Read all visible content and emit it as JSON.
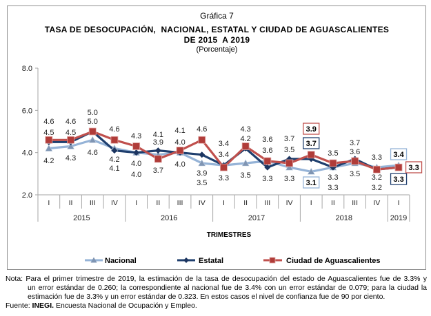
{
  "figure_label": "Gráfica 7",
  "title_line1": "TASA DE DESOCUPACIÓN,  NACIONAL, ESTATAL Y CIUDAD DE AGUASCALIENTES",
  "title_line2": "DE 2015  A 2019",
  "subtitle": "(Porcentaje)",
  "note": {
    "line1": "Nota: Para el primer trimestre de 2019, la estimación de la tasa de desocupación del estado de Aguascalientes fue de 3.3% y",
    "line2": "un error estándar de 0.260; la correspondiente al nacional fue de 3.4% con un error estándar de 0.079; para la ciudad la",
    "line3": "estimación fue de 3.3% y un error estándar de 0.323. En estos casos el nivel de confianza fue de 90 por ciento.",
    "source_prefix": "Fuente: ",
    "source_org": "INEGI.",
    "source_text": " Encuesta Nacional de Ocupación y Empleo."
  },
  "chart_data": {
    "type": "line",
    "title": "TASA DE DESOCUPACIÓN, NACIONAL, ESTATAL Y CIUDAD DE AGUASCALIENTES DE 2015 A 2019",
    "subtitle": "(Porcentaje)",
    "xlabel": "TRIMESTRES",
    "ylabel": "",
    "ylim": [
      2.0,
      8.0
    ],
    "y_ticks": [
      "2.0",
      "4.0",
      "6.0",
      "8.0"
    ],
    "grid": false,
    "legend_position": "bottom",
    "categories": [
      "2015-I",
      "2015-II",
      "2015-III",
      "2015-IV",
      "2016-I",
      "2016-II",
      "2016-III",
      "2016-IV",
      "2017-I",
      "2017-II",
      "2017-III",
      "2017-IV",
      "2018-I",
      "2018-II",
      "2018-III",
      "2018-IV",
      "2019-I"
    ],
    "quarter_labels": [
      "I",
      "II",
      "III",
      "IV",
      "I",
      "II",
      "III",
      "IV",
      "I",
      "II",
      "III",
      "IV",
      "I",
      "II",
      "III",
      "IV",
      "I"
    ],
    "year_groups": [
      {
        "label": "2015",
        "quarters": 4
      },
      {
        "label": "2016",
        "quarters": 4
      },
      {
        "label": "2017",
        "quarters": 4
      },
      {
        "label": "2018",
        "quarters": 4
      },
      {
        "label": "2019",
        "quarters": 1
      }
    ],
    "series": [
      {
        "name": "Nacional",
        "color": "#95b3d7",
        "marker": "triangle",
        "marker_color": "#7f95b3",
        "values": [
          4.2,
          4.3,
          4.6,
          4.2,
          4.0,
          3.9,
          4.0,
          3.5,
          3.4,
          3.5,
          3.6,
          3.3,
          3.1,
          3.3,
          3.5,
          3.3,
          3.4
        ],
        "boxed_points": [
          12,
          16
        ]
      },
      {
        "name": "Estatal",
        "color": "#1f3f6e",
        "marker": "diamond",
        "marker_color": "#1c3560",
        "values": [
          4.5,
          4.5,
          5.0,
          4.1,
          4.0,
          4.1,
          4.0,
          3.9,
          3.4,
          4.2,
          3.3,
          3.7,
          3.7,
          3.3,
          3.7,
          3.2,
          3.3
        ],
        "boxed_points": [
          12,
          16
        ]
      },
      {
        "name": "Ciudad de Aguascalientes",
        "color": "#c0504d",
        "marker": "square",
        "marker_color": "#b03c39",
        "values": [
          4.6,
          4.6,
          5.0,
          4.6,
          4.3,
          3.7,
          4.1,
          4.6,
          3.3,
          4.3,
          3.6,
          3.5,
          3.9,
          3.5,
          3.6,
          3.2,
          3.3
        ],
        "boxed_points": [
          12,
          16
        ]
      }
    ]
  }
}
